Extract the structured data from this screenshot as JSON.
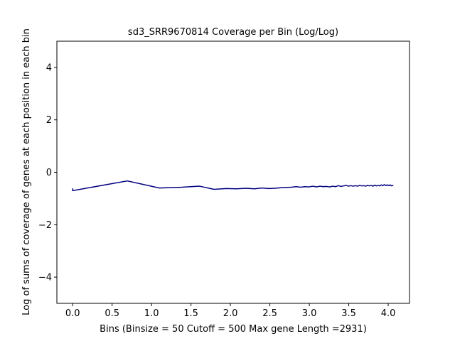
{
  "chart_data": {
    "type": "line",
    "title": "sd3_SRR9670814 Coverage per Bin (Log/Log)",
    "xlabel": "Bins  (Binsize = 50 Cutoff = 500 Max gene Length =2931)",
    "ylabel": "Log of sums of coverage of genes at each position in each bin",
    "xlim": [
      -0.2,
      4.27
    ],
    "ylim": [
      -5,
      5
    ],
    "x_ticks": [
      0.0,
      0.5,
      1.0,
      1.5,
      2.0,
      2.5,
      3.0,
      3.5,
      4.0
    ],
    "x_tick_labels": [
      "0.0",
      "0.5",
      "1.0",
      "1.5",
      "2.0",
      "2.5",
      "3.0",
      "3.5",
      "4.0"
    ],
    "y_ticks": [
      -4,
      -2,
      0,
      2,
      4
    ],
    "y_tick_labels": [
      "−4",
      "−2",
      "0",
      "2",
      "4"
    ],
    "grid": false,
    "legend": "none",
    "line_color": "#000080",
    "series": [
      {
        "points": [
          [
            0.0,
            -0.63
          ],
          [
            0.0,
            -0.7
          ],
          [
            0.693,
            -0.33
          ],
          [
            1.099,
            -0.6
          ],
          [
            1.386,
            -0.57
          ],
          [
            1.609,
            -0.53
          ],
          [
            1.792,
            -0.65
          ],
          [
            1.946,
            -0.62
          ],
          [
            2.079,
            -0.63
          ],
          [
            2.197,
            -0.61
          ],
          [
            2.303,
            -0.63
          ],
          [
            2.398,
            -0.6
          ],
          [
            2.485,
            -0.62
          ],
          [
            2.565,
            -0.61
          ],
          [
            2.639,
            -0.59
          ],
          [
            2.708,
            -0.58
          ],
          [
            2.773,
            -0.57
          ],
          [
            2.833,
            -0.55
          ],
          [
            2.89,
            -0.57
          ],
          [
            2.944,
            -0.55
          ],
          [
            2.996,
            -0.56
          ],
          [
            3.045,
            -0.53
          ],
          [
            3.091,
            -0.56
          ],
          [
            3.135,
            -0.53
          ],
          [
            3.178,
            -0.55
          ],
          [
            3.219,
            -0.54
          ],
          [
            3.258,
            -0.56
          ],
          [
            3.296,
            -0.53
          ],
          [
            3.332,
            -0.55
          ],
          [
            3.367,
            -0.51
          ],
          [
            3.401,
            -0.54
          ],
          [
            3.434,
            -0.52
          ],
          [
            3.466,
            -0.5
          ],
          [
            3.497,
            -0.53
          ],
          [
            3.526,
            -0.51
          ],
          [
            3.555,
            -0.53
          ],
          [
            3.584,
            -0.51
          ],
          [
            3.611,
            -0.53
          ],
          [
            3.638,
            -0.5
          ],
          [
            3.664,
            -0.52
          ],
          [
            3.689,
            -0.51
          ],
          [
            3.714,
            -0.53
          ],
          [
            3.738,
            -0.5
          ],
          [
            3.761,
            -0.52
          ],
          [
            3.784,
            -0.5
          ],
          [
            3.807,
            -0.53
          ],
          [
            3.829,
            -0.49
          ],
          [
            3.85,
            -0.52
          ],
          [
            3.871,
            -0.5
          ],
          [
            3.892,
            -0.52
          ],
          [
            3.912,
            -0.48
          ],
          [
            3.932,
            -0.51
          ],
          [
            3.951,
            -0.47
          ],
          [
            3.97,
            -0.51
          ],
          [
            3.989,
            -0.48
          ],
          [
            4.007,
            -0.51
          ],
          [
            4.025,
            -0.48
          ],
          [
            4.043,
            -0.52
          ],
          [
            4.06,
            -0.5
          ]
        ]
      }
    ]
  }
}
